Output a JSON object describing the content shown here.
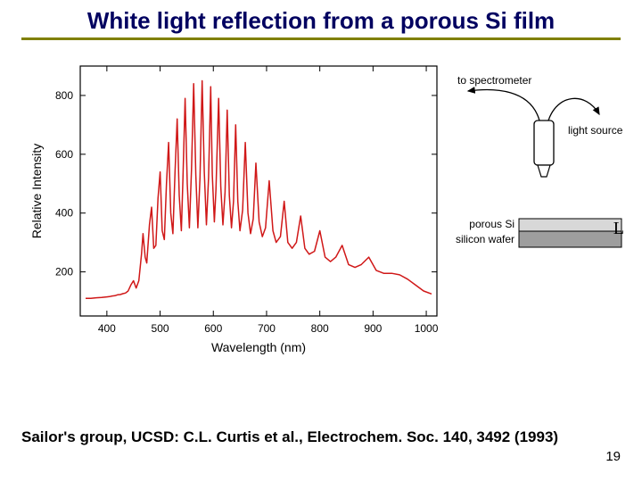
{
  "title": "White light reflection from a porous Si film",
  "title_color": "#000060",
  "underline_color": "#808000",
  "page_number": "19",
  "citation": "Sailor's group, UCSD: C.L. Curtis et al., Electrochem. Soc. 140, 3492 (1993)",
  "side_label": "L",
  "chart": {
    "type": "line",
    "xlabel": "Wavelength (nm)",
    "ylabel": "Relative Intensity",
    "label_fontsize": 14,
    "tick_fontsize": 12,
    "xlim": [
      350,
      1020
    ],
    "ylim": [
      50,
      900
    ],
    "xticks": [
      400,
      500,
      600,
      700,
      800,
      900,
      1000
    ],
    "yticks": [
      200,
      400,
      600,
      800
    ],
    "line_color": "#d01818",
    "line_width": 1.5,
    "axis_color": "#000000",
    "background_color": "#ffffff",
    "series": {
      "x": [
        360,
        370,
        380,
        390,
        400,
        405,
        410,
        415,
        420,
        425,
        430,
        435,
        440,
        445,
        450,
        455,
        460,
        465,
        468,
        472,
        475,
        480,
        484,
        488,
        492,
        496,
        500,
        504,
        508,
        512,
        516,
        520,
        524,
        528,
        532,
        536,
        540,
        543,
        547,
        551,
        555,
        559,
        563,
        567,
        571,
        575,
        579,
        583,
        587,
        591,
        595,
        598,
        602,
        605,
        610,
        614,
        618,
        622,
        626,
        630,
        634,
        638,
        642,
        646,
        650,
        655,
        660,
        665,
        670,
        675,
        680,
        686,
        692,
        698,
        705,
        712,
        718,
        726,
        733,
        740,
        748,
        756,
        764,
        772,
        780,
        790,
        800,
        810,
        820,
        830,
        842,
        854,
        866,
        878,
        892,
        906,
        920,
        935,
        950,
        965,
        980,
        995,
        1010
      ],
      "y": [
        110,
        110,
        112,
        113,
        115,
        116,
        118,
        119,
        122,
        123,
        126,
        128,
        135,
        155,
        170,
        145,
        170,
        260,
        330,
        250,
        230,
        360,
        420,
        280,
        290,
        450,
        540,
        340,
        310,
        500,
        640,
        400,
        330,
        540,
        720,
        460,
        340,
        520,
        790,
        500,
        350,
        550,
        840,
        530,
        350,
        520,
        850,
        540,
        360,
        520,
        830,
        530,
        370,
        480,
        790,
        490,
        360,
        470,
        750,
        460,
        350,
        440,
        700,
        440,
        340,
        410,
        640,
        400,
        330,
        380,
        570,
        370,
        320,
        350,
        510,
        340,
        300,
        320,
        440,
        300,
        280,
        300,
        390,
        280,
        260,
        270,
        340,
        250,
        235,
        250,
        290,
        225,
        215,
        225,
        250,
        205,
        195,
        195,
        190,
        175,
        155,
        135,
        125
      ]
    }
  },
  "diagram": {
    "labels": {
      "spectrometer": "to spectrometer",
      "light_source": "light source",
      "porous": "porous Si",
      "wafer": "silicon wafer"
    },
    "colors": {
      "porous_fill": "#d8d8d8",
      "wafer_fill": "#9e9e9e",
      "stroke": "#000000",
      "probe_fill": "#ffffff"
    }
  }
}
